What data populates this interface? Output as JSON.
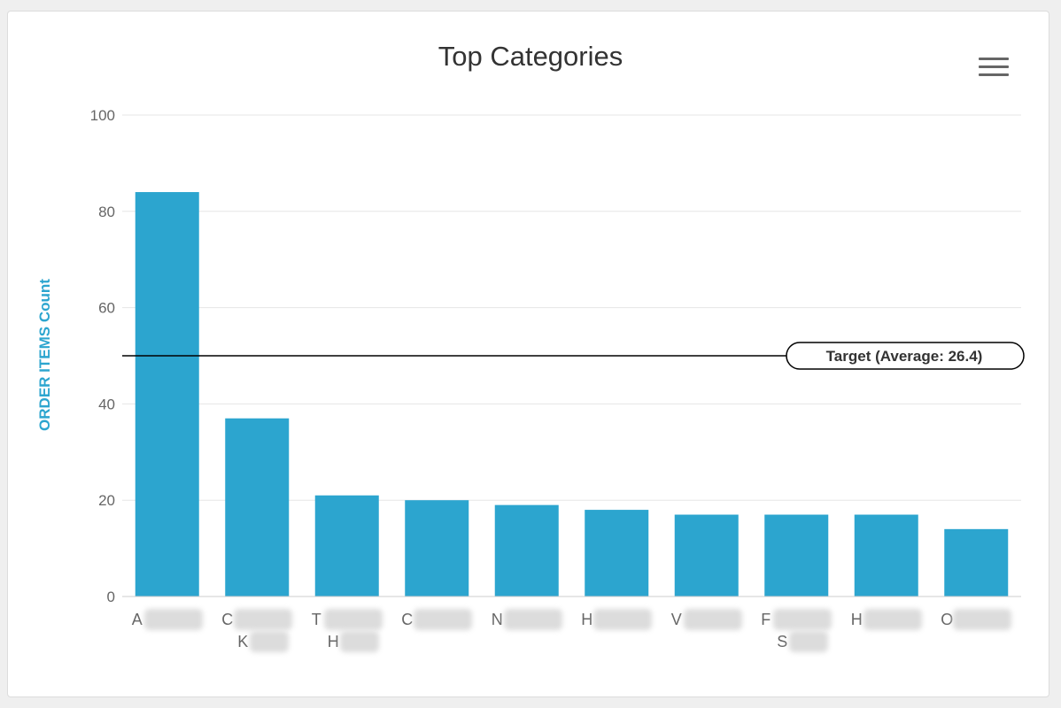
{
  "menu_icon": "hamburger-menu-icon",
  "chart_data": {
    "type": "bar",
    "title": "Top Categories",
    "ylabel": "ORDER ITEMS Count",
    "xlabel": "",
    "ylim": [
      0,
      100
    ],
    "yticks": [
      "0",
      "20",
      "40",
      "60",
      "80",
      "100"
    ],
    "categories": [
      [
        "A"
      ],
      [
        "C",
        "K"
      ],
      [
        "T",
        "H"
      ],
      [
        "C"
      ],
      [
        "N"
      ],
      [
        "H"
      ],
      [
        "V"
      ],
      [
        "F",
        "S"
      ],
      [
        "H"
      ],
      [
        "O"
      ]
    ],
    "values": [
      84,
      37,
      21,
      20,
      19,
      18,
      17,
      17,
      17,
      14
    ],
    "plot_line": {
      "value": 50,
      "label": "Target (Average: 26.4)"
    },
    "grid": true,
    "legend": "none",
    "colors": {
      "bar": "#2ca5cf",
      "ylabel": "#2ca5cf",
      "grid": "#e6e6e6",
      "tick_text": "#666666",
      "target_line": "#000000"
    }
  }
}
